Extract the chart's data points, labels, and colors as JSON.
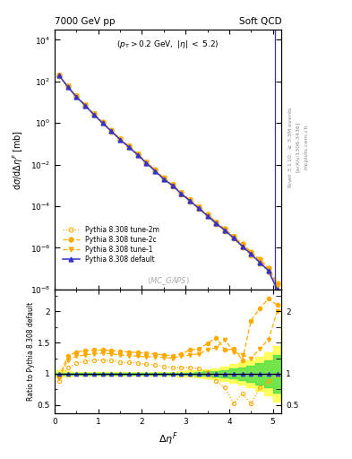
{
  "title_left": "7000 GeV pp",
  "title_right": "Soft QCD",
  "annotation": "(p_{T} > 0.2 GeV, |\\eta| < 5.2)",
  "watermark": "(MC_GAPS)",
  "ylabel_main": "d$\\sigma$/d$\\Delta\\eta^{F}$ [mb]",
  "ylabel_ratio": "Ratio to Pythia 8.308 default",
  "xlabel": "$\\Delta\\eta^{F}$",
  "ylim_main": [
    1e-08,
    30000.0
  ],
  "ylim_ratio": [
    0.37,
    2.35
  ],
  "xlim": [
    0,
    5.2
  ],
  "colors": {
    "default": "#3333cc",
    "orange": "#ffaa00"
  },
  "band_yellow": "#ffff44",
  "band_green": "#44dd44",
  "x_main": [
    0.1,
    0.3,
    0.5,
    0.7,
    0.9,
    1.1,
    1.3,
    1.5,
    1.7,
    1.9,
    2.1,
    2.3,
    2.5,
    2.7,
    2.9,
    3.1,
    3.3,
    3.5,
    3.7,
    3.9,
    4.1,
    4.3,
    4.5,
    4.7,
    4.9,
    5.1
  ],
  "y_default": [
    200,
    55,
    18,
    7,
    2.5,
    1.0,
    0.4,
    0.16,
    0.07,
    0.03,
    0.012,
    0.005,
    0.002,
    0.001,
    0.0004,
    0.00018,
    8e-05,
    3.5e-05,
    1.5e-05,
    7e-06,
    3e-06,
    1.2e-06,
    5e-07,
    2e-07,
    8e-08,
    1e-08
  ],
  "y_tune1": [
    195,
    57,
    19.2,
    7.5,
    2.7,
    1.07,
    0.43,
    0.172,
    0.075,
    0.032,
    0.013,
    0.0055,
    0.0022,
    0.00105,
    0.00043,
    0.000195,
    8.8e-05,
    3.9e-05,
    1.68e-05,
    7.8e-06,
    3.4e-06,
    1.4e-06,
    6e-07,
    2.5e-07,
    1e-07,
    1.5e-08
  ],
  "y_tune2c": [
    198,
    58,
    19.5,
    7.6,
    2.72,
    1.09,
    0.44,
    0.175,
    0.077,
    0.033,
    0.0135,
    0.0057,
    0.0023,
    0.00108,
    0.00045,
    0.0002,
    9.1e-05,
    4.1e-05,
    1.75e-05,
    8.2e-06,
    3.6e-06,
    1.5e-06,
    6.5e-07,
    2.8e-07,
    1.1e-07,
    2e-08
  ],
  "y_tune2m": [
    185,
    52,
    17.5,
    6.9,
    2.45,
    0.99,
    0.39,
    0.155,
    0.067,
    0.029,
    0.0118,
    0.0049,
    0.002,
    0.00093,
    0.00038,
    0.000172,
    7.6e-05,
    3.3e-05,
    1.4e-05,
    6.4e-06,
    2.7e-06,
    1.1e-06,
    4.5e-07,
    1.8e-07,
    7e-08,
    8e-09
  ],
  "ratio_x": [
    0.1,
    0.3,
    0.5,
    0.7,
    0.9,
    1.1,
    1.3,
    1.5,
    1.7,
    1.9,
    2.1,
    2.3,
    2.5,
    2.7,
    2.9,
    3.1,
    3.3,
    3.5,
    3.7,
    3.9,
    4.1,
    4.3,
    4.5,
    4.7,
    4.9,
    5.1
  ],
  "ratio_tune1": [
    0.92,
    1.22,
    1.28,
    1.3,
    1.32,
    1.33,
    1.32,
    1.3,
    1.29,
    1.28,
    1.27,
    1.27,
    1.26,
    1.25,
    1.28,
    1.3,
    1.32,
    1.38,
    1.42,
    1.55,
    1.35,
    1.3,
    1.25,
    1.4,
    1.55,
    2.0
  ],
  "ratio_tune2c": [
    0.95,
    1.28,
    1.35,
    1.37,
    1.38,
    1.38,
    1.37,
    1.36,
    1.35,
    1.34,
    1.33,
    1.32,
    1.3,
    1.29,
    1.32,
    1.38,
    1.4,
    1.48,
    1.58,
    1.38,
    1.4,
    1.22,
    1.85,
    2.05,
    2.2,
    2.1
  ],
  "ratio_tune2m": [
    0.88,
    1.1,
    1.17,
    1.2,
    1.22,
    1.22,
    1.21,
    1.19,
    1.18,
    1.17,
    1.15,
    1.14,
    1.12,
    1.1,
    1.1,
    1.1,
    1.08,
    1.03,
    0.88,
    0.78,
    0.53,
    0.68,
    0.52,
    0.78,
    0.88,
    0.98
  ],
  "band_x": [
    0.0,
    0.2,
    0.4,
    0.6,
    0.8,
    1.0,
    1.2,
    1.4,
    1.6,
    1.8,
    2.0,
    2.2,
    2.4,
    2.6,
    2.8,
    3.0,
    3.2,
    3.4,
    3.6,
    3.8,
    4.0,
    4.2,
    4.4,
    4.6,
    4.8,
    5.0,
    5.2
  ],
  "band_yellow_lo": [
    0.95,
    0.96,
    0.97,
    0.97,
    0.97,
    0.97,
    0.97,
    0.97,
    0.97,
    0.97,
    0.97,
    0.97,
    0.97,
    0.97,
    0.96,
    0.95,
    0.94,
    0.93,
    0.91,
    0.88,
    0.85,
    0.82,
    0.78,
    0.73,
    0.65,
    0.55,
    0.45
  ],
  "band_yellow_hi": [
    1.05,
    1.04,
    1.03,
    1.03,
    1.03,
    1.03,
    1.03,
    1.03,
    1.03,
    1.03,
    1.03,
    1.03,
    1.03,
    1.03,
    1.04,
    1.05,
    1.06,
    1.07,
    1.09,
    1.12,
    1.15,
    1.18,
    1.22,
    1.27,
    1.35,
    1.45,
    2.1
  ],
  "band_green_lo": [
    0.98,
    0.985,
    0.99,
    0.99,
    0.99,
    0.99,
    0.99,
    0.99,
    0.99,
    0.99,
    0.99,
    0.99,
    0.99,
    0.99,
    0.985,
    0.98,
    0.97,
    0.965,
    0.955,
    0.94,
    0.92,
    0.9,
    0.87,
    0.83,
    0.78,
    0.7,
    0.6
  ],
  "band_green_hi": [
    1.02,
    1.015,
    1.01,
    1.01,
    1.01,
    1.01,
    1.01,
    1.01,
    1.01,
    1.01,
    1.01,
    1.01,
    1.01,
    1.01,
    1.015,
    1.02,
    1.03,
    1.035,
    1.045,
    1.06,
    1.08,
    1.1,
    1.13,
    1.17,
    1.22,
    1.3,
    1.5
  ],
  "legend_entries": [
    "Pythia 8.308 default",
    "Pythia 8.308 tune-1",
    "Pythia 8.308 tune-2c",
    "Pythia 8.308 tune-2m"
  ]
}
